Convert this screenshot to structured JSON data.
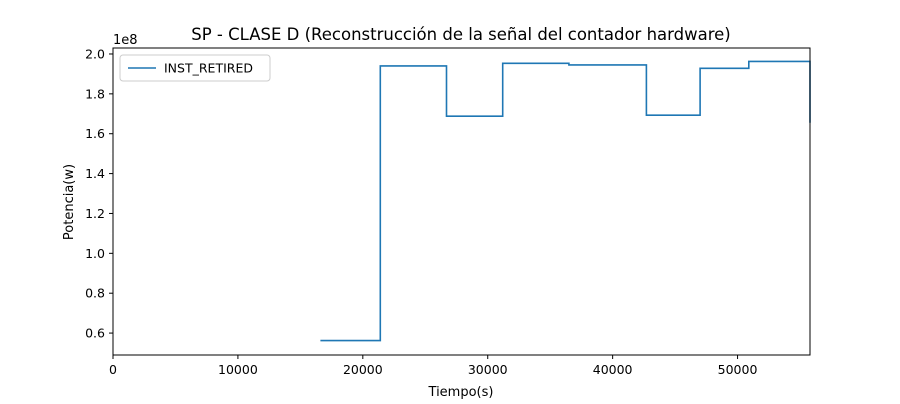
{
  "chart_data": {
    "type": "line",
    "drawstyle": "steps-post",
    "title": "SP - CLASE D (Reconstrucción de la señal del contador hardware)",
    "xlabel": "Tiempo(s)",
    "ylabel": "Potencia(w)",
    "y_offset_text": "1e8",
    "xlim": [
      0,
      55800
    ],
    "ylim": [
      0.49,
      2.03
    ],
    "x_ticks": [
      0,
      10000,
      20000,
      30000,
      40000,
      50000
    ],
    "x_tick_labels": [
      "0",
      "10000",
      "20000",
      "30000",
      "40000",
      "50000"
    ],
    "y_ticks": [
      0.6,
      0.8,
      1.0,
      1.2,
      1.4,
      1.6,
      1.8,
      2.0
    ],
    "y_tick_labels": [
      "0.6",
      "0.8",
      "1.0",
      "1.2",
      "1.4",
      "1.6",
      "1.8",
      "2.0"
    ],
    "grid": false,
    "legend_position": "upper-left",
    "series": [
      {
        "name": "INST_RETIRED",
        "color": "#1f77b4",
        "x": [
          16600,
          21400,
          26700,
          31200,
          36500,
          42700,
          47000,
          50900,
          55800
        ],
        "y": [
          0.562,
          1.94,
          1.688,
          1.953,
          1.945,
          1.693,
          1.928,
          1.963,
          1.655
        ]
      }
    ]
  }
}
